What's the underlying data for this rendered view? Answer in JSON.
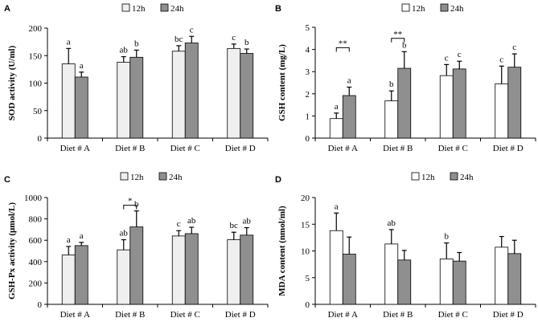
{
  "chart_data": [
    {
      "panel": "A",
      "type": "bar",
      "ylabel": "SOD activity (U/ml)",
      "ylim": [
        0,
        200
      ],
      "yticks": [
        0,
        50,
        100,
        150,
        200
      ],
      "categories": [
        "Diet # A",
        "Diet # B",
        "Diet # C",
        "Diet # D"
      ],
      "series": [
        {
          "name": "12h",
          "values": [
            135,
            138,
            158,
            163
          ],
          "errors": [
            28,
            10,
            10,
            8
          ]
        },
        {
          "name": "24h",
          "values": [
            111,
            147,
            173,
            154
          ],
          "errors": [
            9,
            13,
            12,
            8
          ]
        }
      ],
      "letters": [
        [
          "a",
          "a"
        ],
        [
          "ab",
          "b"
        ],
        [
          "bc",
          "c"
        ],
        [
          "c",
          "b"
        ]
      ],
      "brackets": []
    },
    {
      "panel": "B",
      "type": "bar",
      "ylabel": "GSH content (mg/L)",
      "ylim": [
        0,
        5
      ],
      "yticks": [
        0,
        1,
        2,
        3,
        4,
        5
      ],
      "categories": [
        "Diet # A",
        "Diet # B",
        "Diet # C",
        "Diet # D"
      ],
      "series": [
        {
          "name": "12h",
          "values": [
            0.88,
            1.68,
            2.82,
            2.45
          ],
          "errors": [
            0.25,
            0.45,
            0.5,
            0.8
          ]
        },
        {
          "name": "24h",
          "values": [
            1.92,
            3.15,
            3.12,
            3.2
          ],
          "errors": [
            0.38,
            0.75,
            0.35,
            0.6
          ]
        }
      ],
      "letters": [
        [
          "a",
          "a"
        ],
        [
          "b",
          "b"
        ],
        [
          "c",
          "c"
        ],
        [
          "c",
          "c"
        ]
      ],
      "brackets": [
        {
          "category": 0,
          "y": 4.08,
          "label": "**"
        },
        {
          "category": 1,
          "y": 4.5,
          "label": "**"
        }
      ]
    },
    {
      "panel": "C",
      "type": "bar",
      "ylabel": "GSH-Px activity (μmol/L)",
      "ylim": [
        0,
        1000
      ],
      "yticks": [
        0,
        200,
        400,
        600,
        800,
        1000
      ],
      "categories": [
        "Diet # A",
        "Diet # B",
        "Diet # C",
        "Diet # D"
      ],
      "series": [
        {
          "name": "12h",
          "values": [
            462,
            510,
            640,
            605
          ],
          "errors": [
            80,
            95,
            50,
            70
          ]
        },
        {
          "name": "24h",
          "values": [
            550,
            725,
            662,
            648
          ],
          "errors": [
            30,
            150,
            60,
            70
          ]
        }
      ],
      "letters": [
        [
          "a",
          "a"
        ],
        [
          "ab",
          "b"
        ],
        [
          "c",
          "ab"
        ],
        [
          "bc",
          "ab"
        ]
      ],
      "brackets": [
        {
          "category": 1,
          "y": 928,
          "label": "*"
        }
      ]
    },
    {
      "panel": "D",
      "type": "bar",
      "ylabel": "MDA content (nmol/ml)",
      "ylim": [
        0,
        20
      ],
      "yticks": [
        0,
        5,
        10,
        15,
        20
      ],
      "categories": [
        "Diet # A",
        "Diet # B",
        "Diet # C",
        "Diet # D"
      ],
      "series": [
        {
          "name": "12h",
          "values": [
            13.8,
            11.3,
            8.5,
            10.7
          ],
          "errors": [
            3.3,
            2.7,
            3,
            2
          ]
        },
        {
          "name": "24h",
          "values": [
            9.4,
            8.3,
            8.1,
            9.5
          ],
          "errors": [
            3.2,
            1.8,
            1.6,
            2.5
          ]
        }
      ],
      "letters": [
        [
          "a",
          ""
        ],
        [
          "ab",
          ""
        ],
        [
          "b",
          ""
        ],
        [
          "",
          ""
        ]
      ],
      "brackets": []
    }
  ]
}
